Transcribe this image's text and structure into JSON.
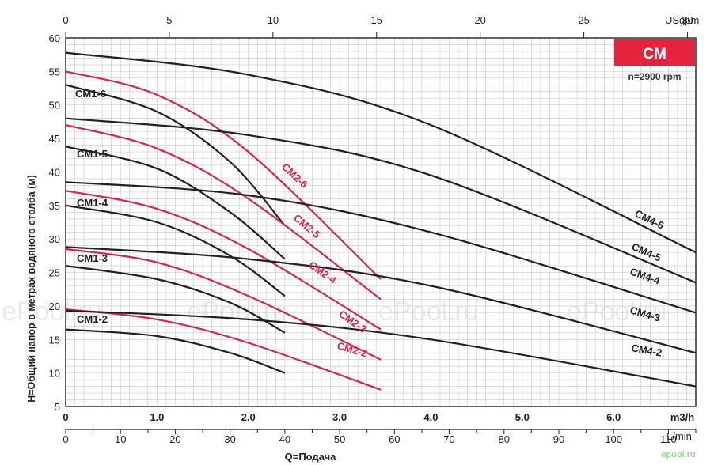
{
  "chart_data": {
    "type": "line",
    "title": "CM",
    "subtitle": "n=2900 rpm",
    "ylabel": "H=Общий напор в метрах водяного столба (м)",
    "xlabel": "Q=Подача",
    "ylim": [
      5,
      60
    ],
    "yticks": [
      "5",
      "10",
      "15",
      "20",
      "25",
      "30",
      "35",
      "40",
      "45",
      "50",
      "55",
      "60"
    ],
    "x_axes": [
      {
        "unit": "m3/h",
        "range": [
          0,
          6.9
        ],
        "ticks": [
          {
            "v": 0,
            "label": "0"
          },
          {
            "v": 1,
            "label": "1.0"
          },
          {
            "v": 2,
            "label": "2.0"
          },
          {
            "v": 3,
            "label": "3.0"
          },
          {
            "v": 4,
            "label": "4.0"
          },
          {
            "v": 5,
            "label": "5.0"
          },
          {
            "v": 6,
            "label": "6.0"
          }
        ]
      },
      {
        "unit": "L/min",
        "range": [
          0,
          115
        ],
        "ticks": [
          {
            "v": 0,
            "label": "0"
          },
          {
            "v": 10,
            "label": "10"
          },
          {
            "v": 20,
            "label": "20"
          },
          {
            "v": 30,
            "label": "30"
          },
          {
            "v": 40,
            "label": "40"
          },
          {
            "v": 50,
            "label": "50"
          },
          {
            "v": 60,
            "label": "60"
          },
          {
            "v": 70,
            "label": "70"
          },
          {
            "v": 80,
            "label": "80"
          },
          {
            "v": 90,
            "label": "90"
          },
          {
            "v": 100,
            "label": "100"
          },
          {
            "v": 110,
            "label": "110"
          }
        ]
      },
      {
        "unit": "USgpm",
        "range": [
          0,
          30.4
        ],
        "ticks": [
          {
            "v": 0,
            "label": "0"
          },
          {
            "v": 5,
            "label": "5"
          },
          {
            "v": 10,
            "label": "10"
          },
          {
            "v": 15,
            "label": "15"
          },
          {
            "v": 20,
            "label": "20"
          },
          {
            "v": 25,
            "label": "25"
          },
          {
            "v": 30,
            "label": "30"
          }
        ]
      }
    ],
    "series": [
      {
        "name": "CM1-2",
        "color": "#231f20",
        "x": [
          0,
          1.0,
          1.8,
          2.4
        ],
        "y": [
          16.5,
          15.5,
          13.0,
          10.0
        ]
      },
      {
        "name": "CM1-3",
        "color": "#231f20",
        "x": [
          0,
          1.0,
          1.8,
          2.4
        ],
        "y": [
          26.0,
          24.0,
          20.5,
          16.0
        ]
      },
      {
        "name": "CM1-4",
        "color": "#231f20",
        "x": [
          0,
          1.0,
          1.8,
          2.4
        ],
        "y": [
          35.0,
          32.5,
          27.5,
          21.5
        ]
      },
      {
        "name": "CM1-5",
        "color": "#231f20",
        "x": [
          0,
          1.0,
          1.8,
          2.4
        ],
        "y": [
          43.8,
          40.5,
          34.0,
          27.0
        ]
      },
      {
        "name": "CM1-6",
        "color": "#231f20",
        "x": [
          0,
          1.0,
          1.8,
          2.4
        ],
        "y": [
          53.0,
          49.0,
          41.5,
          32.0
        ]
      },
      {
        "name": "CM2-2",
        "color": "#d6254a",
        "x": [
          0,
          1.0,
          2.0,
          3.45
        ],
        "y": [
          19.5,
          18.0,
          14.5,
          7.5
        ]
      },
      {
        "name": "CM2-3",
        "color": "#d6254a",
        "x": [
          0,
          1.0,
          2.0,
          3.45
        ],
        "y": [
          28.5,
          26.5,
          21.5,
          12.0
        ]
      },
      {
        "name": "CM2-4",
        "color": "#d6254a",
        "x": [
          0,
          1.0,
          2.0,
          3.45
        ],
        "y": [
          37.2,
          34.5,
          28.5,
          16.5
        ]
      },
      {
        "name": "CM2-5",
        "color": "#d6254a",
        "x": [
          0,
          1.0,
          2.0,
          3.45
        ],
        "y": [
          47.0,
          43.5,
          36.0,
          21.0
        ]
      },
      {
        "name": "CM2-6",
        "color": "#d6254a",
        "x": [
          0,
          1.0,
          2.0,
          3.45
        ],
        "y": [
          55.0,
          51.5,
          43.0,
          24.0
        ]
      },
      {
        "name": "CM4-2",
        "color": "#231f20",
        "x": [
          0,
          2.0,
          4.0,
          6.9
        ],
        "y": [
          19.3,
          18.0,
          15.0,
          8.0
        ]
      },
      {
        "name": "CM4-3",
        "color": "#231f20",
        "x": [
          0,
          2.0,
          4.0,
          6.9
        ],
        "y": [
          28.8,
          27.0,
          23.0,
          13.0
        ]
      },
      {
        "name": "CM4-4",
        "color": "#231f20",
        "x": [
          0,
          2.0,
          4.0,
          6.9
        ],
        "y": [
          38.5,
          36.5,
          31.0,
          19.0
        ]
      },
      {
        "name": "CM4-5",
        "color": "#231f20",
        "x": [
          0,
          2.0,
          4.0,
          6.9
        ],
        "y": [
          48.0,
          45.5,
          39.5,
          23.5
        ]
      },
      {
        "name": "CM4-6",
        "color": "#231f20",
        "x": [
          0,
          2.0,
          4.0,
          6.9
        ],
        "y": [
          57.8,
          54.5,
          47.0,
          28.0
        ]
      }
    ]
  },
  "watermarks": [
    "ePool.ru",
    "ePool.ru",
    "ePool.ru",
    "ePool.ru"
  ],
  "logo": "epool.ru",
  "colors": {
    "black_series": "#231f20",
    "red_series": "#d6254a",
    "badge_bg": "#e4233f",
    "grid": "#c7c8ca"
  }
}
